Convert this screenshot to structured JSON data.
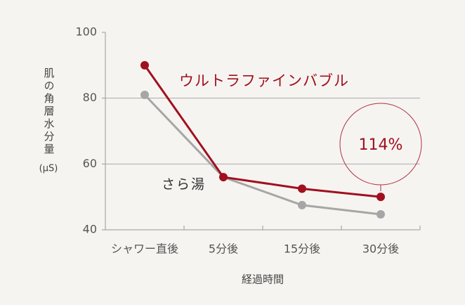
{
  "chart_data": {
    "type": "line",
    "y_label": "肌の角層水分量",
    "y_unit": "(μS)",
    "x_label": "経過時間",
    "categories": [
      "シャワー直後",
      "5分後",
      "15分後",
      "30分後"
    ],
    "series": [
      {
        "name": "ウルトラファインバブル",
        "color": "#a0101e",
        "values": [
          90,
          56,
          52.5,
          50
        ]
      },
      {
        "name": "さら湯",
        "color": "#a6a6a6",
        "values": [
          81,
          56,
          47.5,
          44.7
        ]
      }
    ],
    "annotation": "114%",
    "ylim": [
      40,
      100
    ],
    "yticks": [
      40,
      60,
      80,
      100
    ],
    "grid": true
  }
}
